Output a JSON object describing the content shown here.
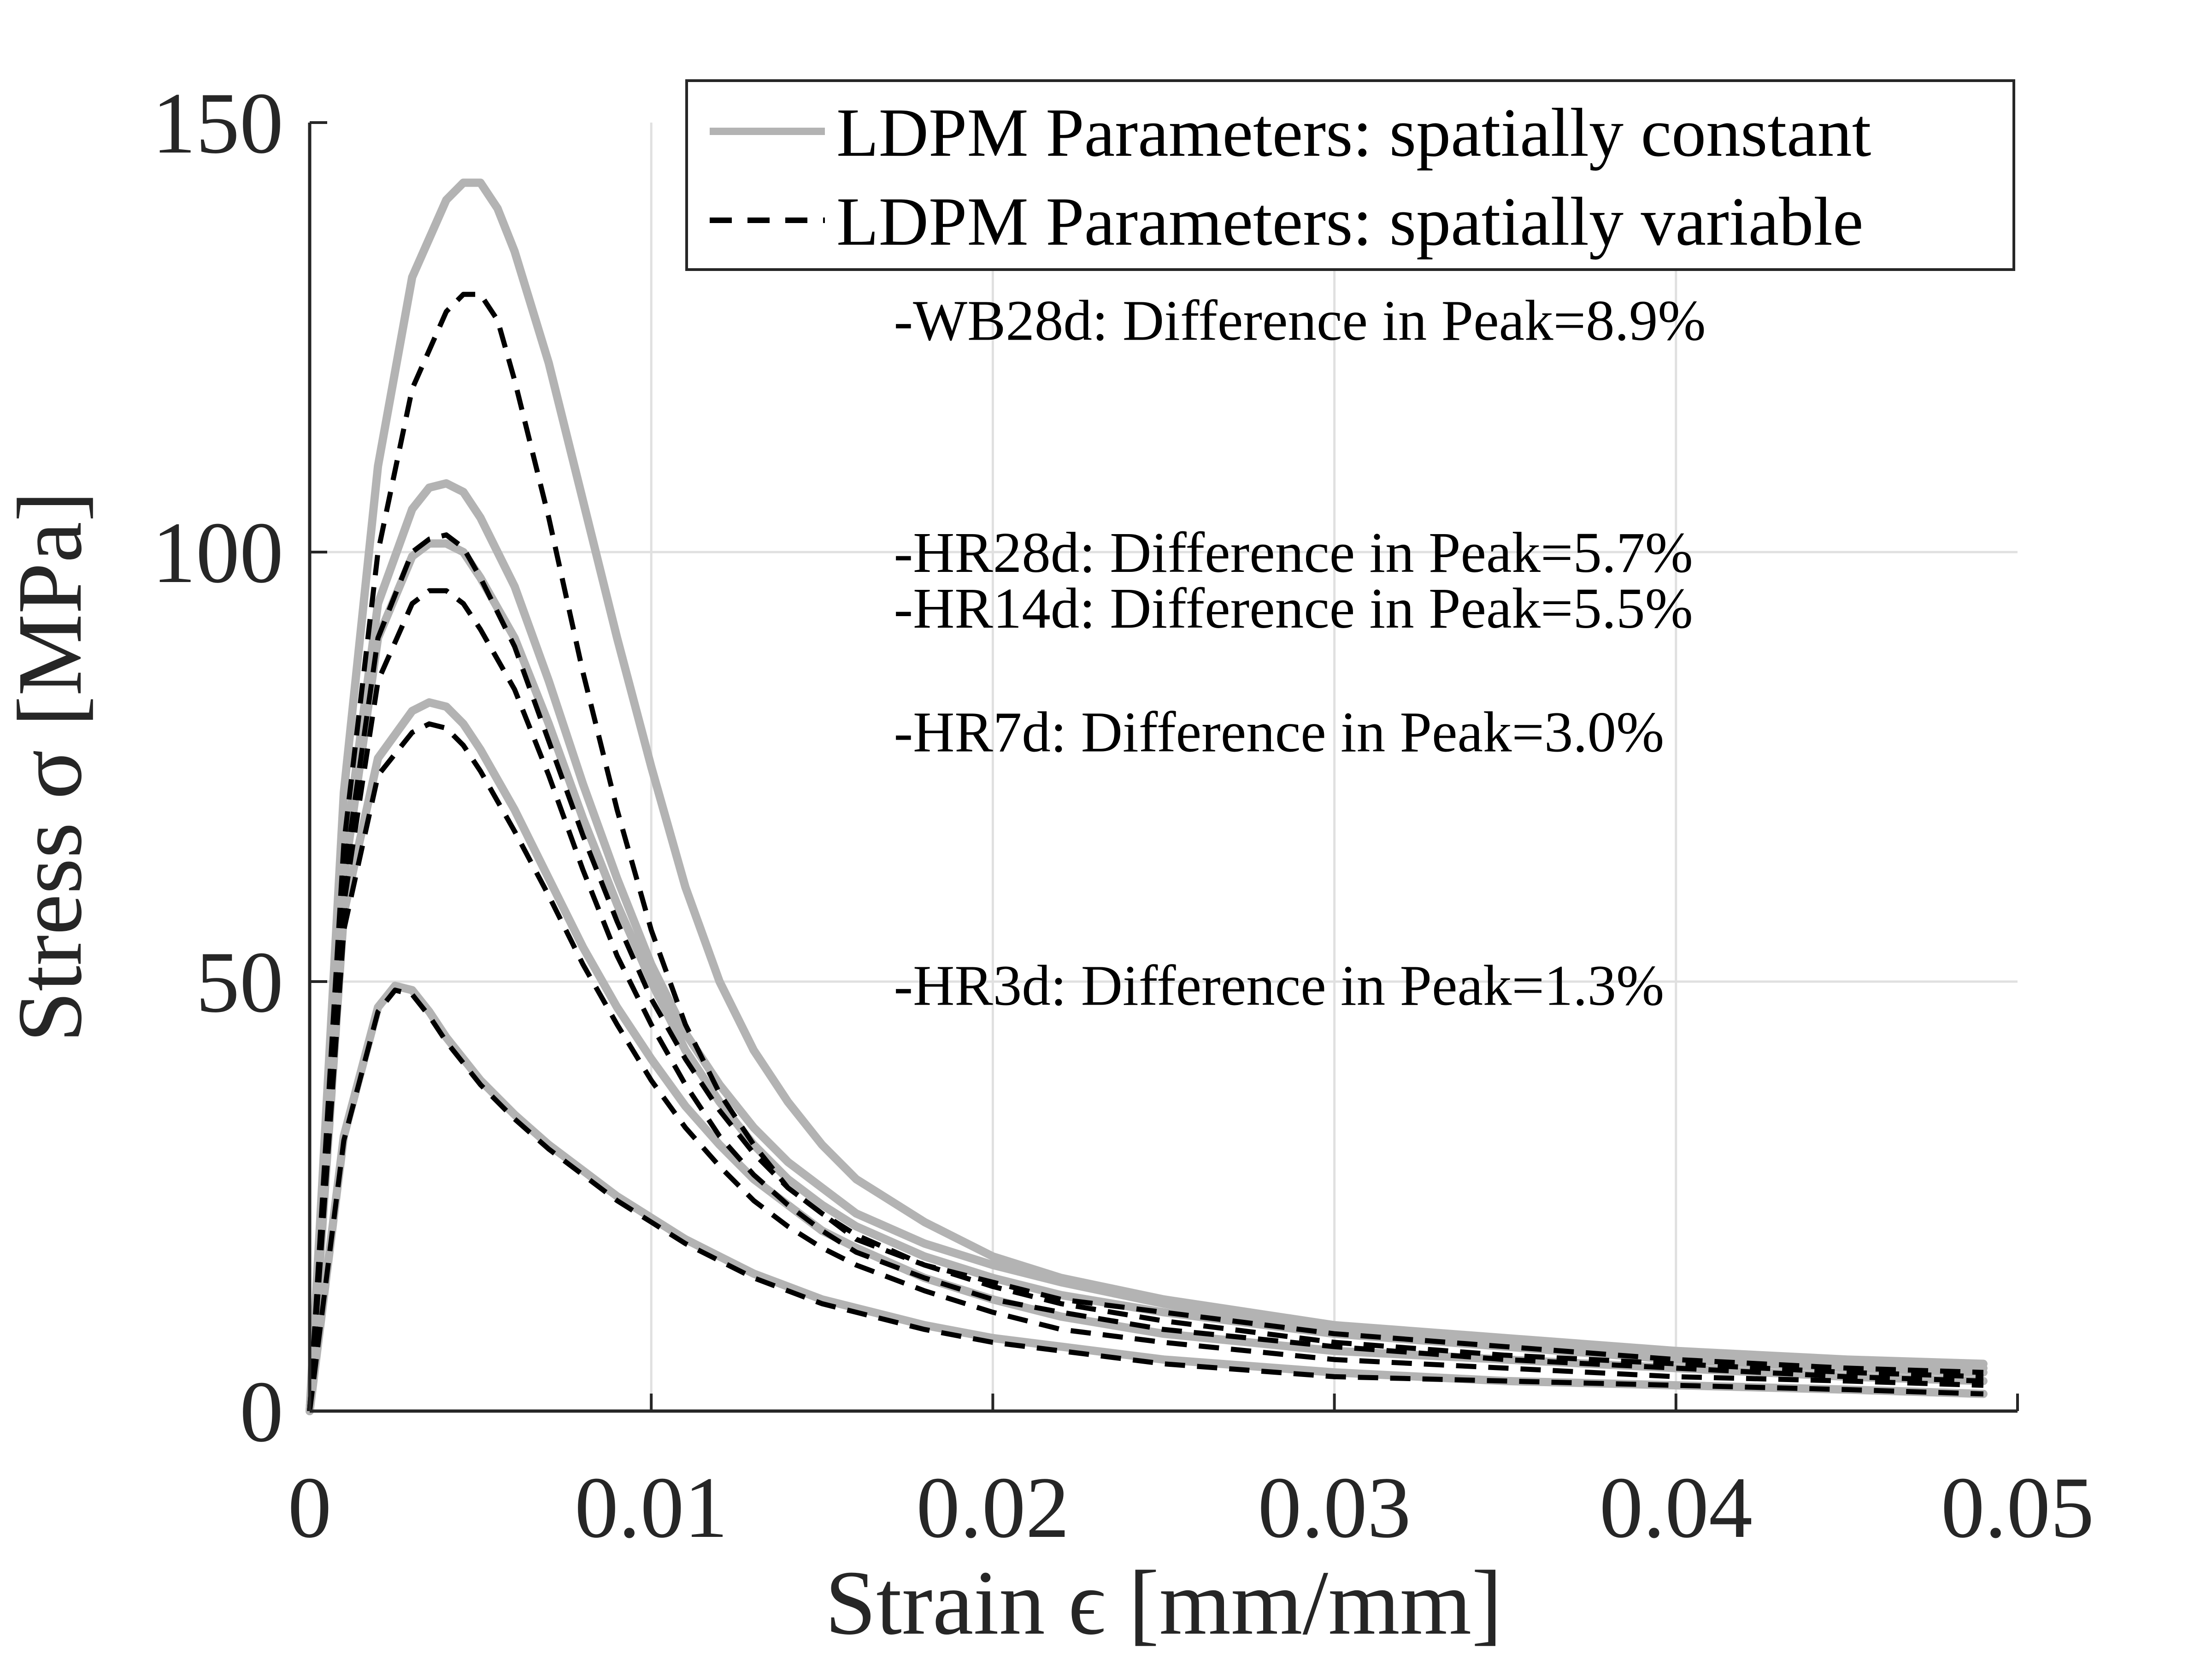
{
  "chart_data": {
    "type": "line",
    "title": "",
    "xlabel": "Strain ϵ [mm/mm]",
    "ylabel": "Stress σ [MPa]",
    "xlim": [
      0,
      0.05
    ],
    "ylim": [
      0,
      150
    ],
    "xticks": [
      0,
      0.01,
      0.02,
      0.03,
      0.04,
      0.05
    ],
    "xtick_labels": [
      "0",
      "0.01",
      "0.02",
      "0.03",
      "0.04",
      "0.05"
    ],
    "yticks": [
      0,
      50,
      100,
      150
    ],
    "ytick_labels": [
      "0",
      "50",
      "100",
      "150"
    ],
    "grid": true,
    "legend_position": "top-right",
    "colors": {
      "constant": "#b3b3b3",
      "variable": "#000000",
      "grid": "#e0e0e0",
      "axis": "#262626"
    },
    "legend": [
      {
        "label": "LDPM Parameters: spatially constant",
        "style": "solid",
        "color": "#b3b3b3"
      },
      {
        "label": "LDPM Parameters: spatially variable",
        "style": "dashed",
        "color": "#000000"
      }
    ],
    "annotations": [
      {
        "text": "-WB28d: Difference in Peak=8.9%",
        "x": 0.0171,
        "y": 124.7
      },
      {
        "text": "-HR28d: Difference in Peak=5.7%",
        "x": 0.0171,
        "y": 97.7
      },
      {
        "text": "-HR14d: Difference in Peak=5.5%",
        "x": 0.0171,
        "y": 91.2
      },
      {
        "text": "-HR7d: Difference in Peak=3.0%",
        "x": 0.0171,
        "y": 76.8
      },
      {
        "text": "-HR3d: Difference in Peak=1.3%",
        "x": 0.0171,
        "y": 47.3
      }
    ],
    "series": [
      {
        "name": "WB28d spatially constant",
        "style": "solid",
        "color": "#b3b3b3",
        "x": [
          0,
          0.001,
          0.002,
          0.003,
          0.004,
          0.0045,
          0.005,
          0.0055,
          0.006,
          0.007,
          0.008,
          0.009,
          0.01,
          0.011,
          0.012,
          0.013,
          0.014,
          0.015,
          0.016,
          0.018,
          0.02,
          0.022,
          0.025,
          0.03,
          0.035,
          0.04,
          0.045,
          0.049
        ],
        "y": [
          0,
          72,
          110,
          132,
          141,
          143,
          143,
          140,
          135,
          122,
          106,
          90,
          75,
          61,
          50,
          42,
          36,
          31,
          27,
          22,
          18,
          15.5,
          13,
          10,
          8.5,
          7,
          6,
          5.5
        ]
      },
      {
        "name": "WB28d spatially variable",
        "style": "dashed",
        "color": "#000000",
        "x": [
          0,
          0.001,
          0.002,
          0.003,
          0.004,
          0.0045,
          0.005,
          0.0055,
          0.006,
          0.007,
          0.008,
          0.009,
          0.01,
          0.011,
          0.012,
          0.013,
          0.014,
          0.015,
          0.016,
          0.018,
          0.02,
          0.022,
          0.025,
          0.03,
          0.035,
          0.04,
          0.045,
          0.049
        ],
        "y": [
          0,
          66,
          100,
          119,
          128,
          130,
          130,
          127,
          120,
          104,
          86,
          70,
          56,
          45,
          37,
          31,
          26,
          23,
          20,
          17,
          15,
          13,
          11.5,
          9,
          7.5,
          6,
          5,
          4.5
        ]
      },
      {
        "name": "HR28d spatially constant",
        "style": "solid",
        "color": "#b3b3b3",
        "x": [
          0,
          0.001,
          0.002,
          0.003,
          0.0035,
          0.004,
          0.0045,
          0.005,
          0.006,
          0.007,
          0.008,
          0.009,
          0.01,
          0.011,
          0.012,
          0.013,
          0.014,
          0.015,
          0.016,
          0.018,
          0.02,
          0.022,
          0.025,
          0.03,
          0.035,
          0.04,
          0.045,
          0.049
        ],
        "y": [
          0,
          64,
          94,
          105,
          107.5,
          108,
          107,
          104,
          96,
          85,
          73,
          62,
          52,
          44,
          38,
          33,
          29,
          26,
          23,
          19.5,
          17,
          15,
          12.5,
          9.5,
          8,
          6.5,
          5.5,
          5
        ]
      },
      {
        "name": "HR28d spatially variable",
        "style": "dashed",
        "color": "#000000",
        "x": [
          0,
          0.001,
          0.002,
          0.003,
          0.0035,
          0.004,
          0.0045,
          0.005,
          0.006,
          0.007,
          0.008,
          0.009,
          0.01,
          0.011,
          0.012,
          0.013,
          0.014,
          0.015,
          0.016,
          0.018,
          0.02,
          0.022,
          0.025,
          0.03,
          0.035,
          0.04,
          0.045,
          0.049
        ],
        "y": [
          0,
          62,
          90,
          100,
          101.5,
          102,
          100.5,
          97,
          89,
          78,
          67,
          57,
          48,
          41,
          35,
          30,
          26,
          23,
          20.5,
          17,
          14.5,
          12.5,
          10.5,
          8,
          6.5,
          5.5,
          4.5,
          4
        ]
      },
      {
        "name": "HR14d spatially constant",
        "style": "solid",
        "color": "#b3b3b3",
        "x": [
          0,
          0.001,
          0.002,
          0.003,
          0.0035,
          0.004,
          0.0045,
          0.005,
          0.006,
          0.007,
          0.008,
          0.009,
          0.01,
          0.011,
          0.012,
          0.013,
          0.014,
          0.015,
          0.016,
          0.018,
          0.02,
          0.022,
          0.025,
          0.03,
          0.035,
          0.04,
          0.045,
          0.049
        ],
        "y": [
          0,
          62,
          90,
          99.5,
          101,
          101,
          100,
          97,
          90,
          80,
          69,
          59,
          50,
          42,
          36,
          31,
          27,
          24,
          21.5,
          18,
          15.5,
          13.5,
          11.5,
          9,
          7.5,
          6,
          5,
          4.5
        ]
      },
      {
        "name": "HR14d spatially variable",
        "style": "dashed",
        "color": "#000000",
        "x": [
          0,
          0.001,
          0.002,
          0.003,
          0.0035,
          0.004,
          0.0045,
          0.005,
          0.006,
          0.007,
          0.008,
          0.009,
          0.01,
          0.011,
          0.012,
          0.013,
          0.014,
          0.015,
          0.016,
          0.018,
          0.02,
          0.022,
          0.025,
          0.03,
          0.035,
          0.04,
          0.045,
          0.049
        ],
        "y": [
          0,
          59,
          85,
          94,
          95.5,
          95.5,
          94,
          91,
          84,
          74,
          63,
          53,
          45,
          38,
          32,
          27.5,
          24,
          21,
          18.5,
          15.5,
          13,
          11.5,
          9.5,
          7.5,
          6,
          5,
          4,
          3.5
        ]
      },
      {
        "name": "HR7d spatially constant",
        "style": "solid",
        "color": "#b3b3b3",
        "x": [
          0,
          0.001,
          0.002,
          0.003,
          0.0035,
          0.004,
          0.0045,
          0.005,
          0.006,
          0.007,
          0.008,
          0.009,
          0.01,
          0.011,
          0.012,
          0.013,
          0.014,
          0.015,
          0.016,
          0.018,
          0.02,
          0.022,
          0.025,
          0.03,
          0.035,
          0.04,
          0.045,
          0.049
        ],
        "y": [
          0,
          58,
          76,
          81.5,
          82.5,
          82,
          80,
          77,
          70,
          62,
          54,
          47,
          41,
          35.5,
          31,
          27,
          24,
          21,
          19,
          15.5,
          13,
          11,
          9,
          7,
          6,
          5,
          4,
          3.5
        ]
      },
      {
        "name": "HR7d spatially variable",
        "style": "dashed",
        "color": "#000000",
        "x": [
          0,
          0.001,
          0.002,
          0.003,
          0.0035,
          0.004,
          0.0045,
          0.005,
          0.006,
          0.007,
          0.008,
          0.009,
          0.01,
          0.011,
          0.012,
          0.013,
          0.014,
          0.015,
          0.016,
          0.018,
          0.02,
          0.022,
          0.025,
          0.03,
          0.035,
          0.04,
          0.045,
          0.049
        ],
        "y": [
          0,
          56,
          74,
          79,
          80,
          79.5,
          77.5,
          74.5,
          67.5,
          60,
          52,
          45,
          38.5,
          33,
          28.5,
          24.5,
          21.5,
          19,
          17,
          14,
          11.5,
          9.5,
          8,
          6,
          5,
          4,
          3.5,
          3
        ]
      },
      {
        "name": "HR3d spatially constant",
        "style": "solid",
        "color": "#b3b3b3",
        "x": [
          0,
          0.001,
          0.002,
          0.0025,
          0.003,
          0.0035,
          0.004,
          0.005,
          0.006,
          0.007,
          0.008,
          0.009,
          0.01,
          0.011,
          0.012,
          0.013,
          0.014,
          0.015,
          0.016,
          0.018,
          0.02,
          0.022,
          0.025,
          0.03,
          0.035,
          0.04,
          0.045,
          0.049
        ],
        "y": [
          0,
          32,
          47,
          49.5,
          49,
          46.5,
          43.5,
          38.5,
          34.5,
          31,
          28,
          25,
          22.5,
          20,
          18,
          16,
          14.5,
          13,
          12,
          10,
          8.5,
          7.5,
          6,
          4.5,
          3.5,
          3,
          2.5,
          2
        ]
      },
      {
        "name": "HR3d spatially variable",
        "style": "dashed",
        "color": "#000000",
        "x": [
          0,
          0.001,
          0.002,
          0.0025,
          0.003,
          0.0035,
          0.004,
          0.005,
          0.006,
          0.007,
          0.008,
          0.009,
          0.01,
          0.011,
          0.012,
          0.013,
          0.014,
          0.015,
          0.016,
          0.018,
          0.02,
          0.022,
          0.025,
          0.03,
          0.035,
          0.04,
          0.045,
          0.049
        ],
        "y": [
          0,
          31.5,
          46.5,
          49,
          48.5,
          46,
          43,
          38,
          34,
          30.5,
          27.5,
          24.5,
          22,
          19.5,
          17.5,
          15.5,
          14,
          12.5,
          11.5,
          9.5,
          8,
          7,
          5.5,
          4,
          3.5,
          3,
          2.5,
          2
        ]
      }
    ]
  }
}
